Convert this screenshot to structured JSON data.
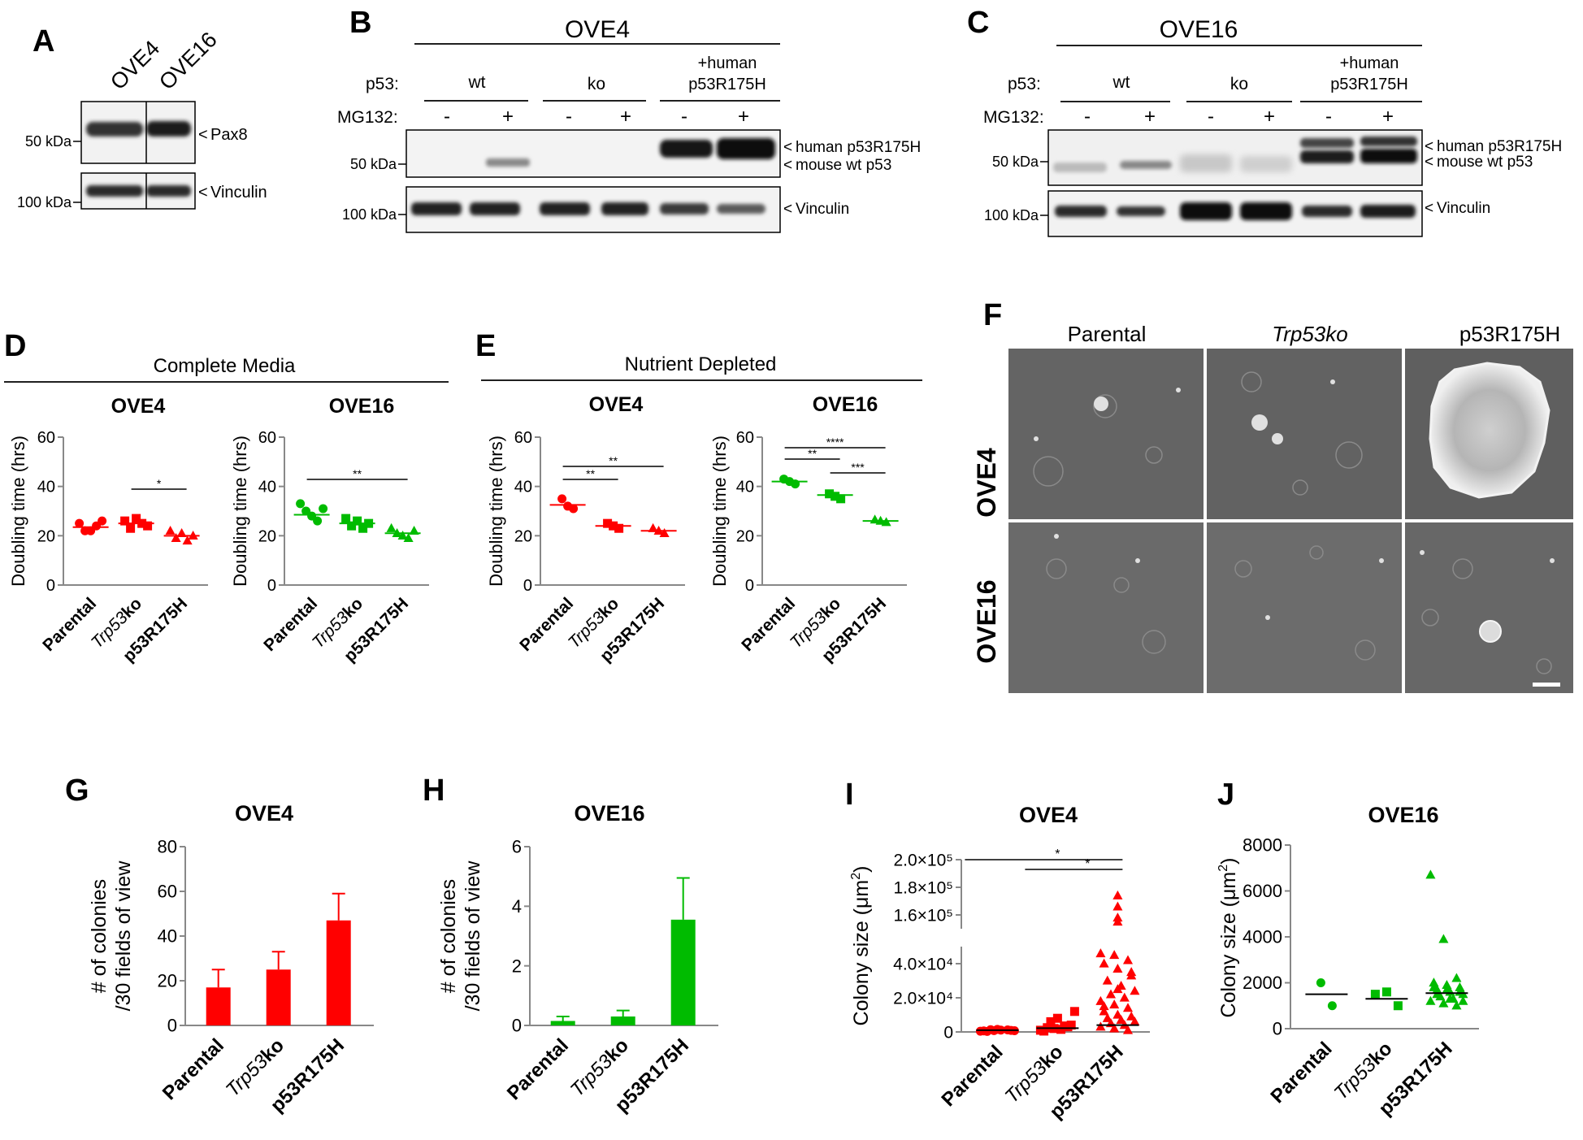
{
  "panels": {
    "A": {
      "letter": "A",
      "lanes": [
        "OVE4",
        "OVE16"
      ],
      "marker_top": "50 kDa",
      "marker_bottom": "100 kDa",
      "band_top": "Pax8",
      "band_bottom": "Vinculin"
    },
    "B": {
      "letter": "B",
      "cell_line": "OVE4",
      "p53_label": "p53:",
      "mg_label": "MG132:",
      "groups": [
        "wt",
        "ko"
      ],
      "group3_line1": "+human",
      "group3_line2": "p53R175H",
      "signs": [
        "-",
        "+",
        "-",
        "+",
        "-",
        "+"
      ],
      "marker_top": "50 kDa",
      "marker_bottom": "100 kDa",
      "band_human": "human p53R175H",
      "band_mouse": "mouse wt p53",
      "band_vinculin": "Vinculin"
    },
    "C": {
      "letter": "C",
      "cell_line": "OVE16",
      "p53_label": "p53:",
      "mg_label": "MG132:",
      "groups": [
        "wt",
        "ko"
      ],
      "group3_line1": "+human",
      "group3_line2": "p53R175H",
      "signs": [
        "-",
        "+",
        "-",
        "+",
        "-",
        "+"
      ],
      "marker_top": "50 kDa",
      "marker_bottom": "100 kDa",
      "band_human": "human p53R175H",
      "band_mouse": "mouse wt p53",
      "band_vinculin": "Vinculin"
    },
    "D": {
      "letter": "D",
      "condition": "Complete Media"
    },
    "E": {
      "letter": "E",
      "condition": "Nutrient Depleted"
    },
    "F": {
      "letter": "F",
      "columns": [
        "Parental",
        "Trp53ko",
        "p53R175H"
      ],
      "rows": [
        "OVE4",
        "OVE16"
      ]
    },
    "G": {
      "letter": "G"
    },
    "H": {
      "letter": "H"
    },
    "I": {
      "letter": "I"
    },
    "J": {
      "letter": "J"
    }
  },
  "chart_data": [
    {
      "id": "D-OVE4",
      "type": "scatter",
      "title": "OVE4",
      "ylabel": "Doubling time (hrs)",
      "ylim": [
        0,
        60
      ],
      "yticks": [
        0,
        20,
        40,
        60
      ],
      "color": "#ff0000",
      "categories": [
        "Parental",
        "Trp53ko",
        "p53R175H"
      ],
      "points": [
        [
          25,
          22,
          22,
          24,
          26
        ],
        [
          26,
          23,
          27,
          25,
          24
        ],
        [
          22,
          19,
          21,
          18,
          20
        ]
      ],
      "means": [
        23.5,
        25,
        20
      ],
      "significance": [
        {
          "from": 1,
          "to": 2,
          "label": "*"
        }
      ]
    },
    {
      "id": "D-OVE16",
      "type": "scatter",
      "title": "OVE16",
      "ylabel": "Doubling time (hrs)",
      "ylim": [
        0,
        60
      ],
      "yticks": [
        0,
        20,
        40,
        60
      ],
      "color": "#00bb00",
      "categories": [
        "Parental",
        "Trp53ko",
        "p53R175H"
      ],
      "points": [
        [
          33,
          30,
          28,
          26,
          31
        ],
        [
          27,
          24,
          26,
          23,
          25
        ],
        [
          23,
          21,
          20,
          19,
          22
        ]
      ],
      "means": [
        28.5,
        25,
        21
      ],
      "significance": [
        {
          "from": 0,
          "to": 2,
          "label": "**"
        }
      ]
    },
    {
      "id": "E-OVE4",
      "type": "scatter",
      "title": "OVE4",
      "ylabel": "Doubling time (hrs)",
      "ylim": [
        0,
        60
      ],
      "yticks": [
        0,
        20,
        40,
        60
      ],
      "color": "#ff0000",
      "categories": [
        "Parental",
        "Trp53ko",
        "p53R175H"
      ],
      "points": [
        [
          35,
          32,
          31
        ],
        [
          25,
          24,
          23
        ],
        [
          23,
          22,
          21
        ]
      ],
      "means": [
        32.5,
        24,
        22
      ],
      "significance": [
        {
          "from": 0,
          "to": 1,
          "label": "**"
        },
        {
          "from": 0,
          "to": 2,
          "label": "**"
        }
      ]
    },
    {
      "id": "E-OVE16",
      "type": "scatter",
      "title": "OVE16",
      "ylabel": "Doubling time (hrs)",
      "ylim": [
        0,
        60
      ],
      "yticks": [
        0,
        20,
        40,
        60
      ],
      "color": "#00bb00",
      "categories": [
        "Parental",
        "Trp53ko",
        "p53R175H"
      ],
      "points": [
        [
          43,
          42,
          41
        ],
        [
          37,
          36,
          35
        ],
        [
          26.5,
          26,
          25.5
        ]
      ],
      "means": [
        42,
        36.5,
        26
      ],
      "significance": [
        {
          "from": 0,
          "to": 1,
          "label": "**"
        },
        {
          "from": 1,
          "to": 2,
          "label": "***"
        },
        {
          "from": 0,
          "to": 2,
          "label": "****"
        }
      ]
    },
    {
      "id": "G",
      "type": "bar",
      "title": "OVE4",
      "ylabel_line1": "# of colonies",
      "ylabel_line2": "/30 fields of view",
      "ylim": [
        0,
        80
      ],
      "yticks": [
        0,
        20,
        40,
        60,
        80
      ],
      "color": "#ff0000",
      "categories": [
        "Parental",
        "Trp53ko",
        "p53R175H"
      ],
      "values": [
        17,
        25,
        47
      ],
      "errors": [
        8,
        8,
        12
      ]
    },
    {
      "id": "H",
      "type": "bar",
      "title": "OVE16",
      "ylabel_line1": "# of colonies",
      "ylabel_line2": "/30 fields of view",
      "ylim": [
        0,
        6
      ],
      "yticks": [
        0,
        2,
        4,
        6
      ],
      "color": "#00bb00",
      "categories": [
        "Parental",
        "Trp53ko",
        "p53R175H"
      ],
      "values": [
        0.15,
        0.3,
        3.55
      ],
      "errors": [
        0.15,
        0.2,
        1.4
      ]
    },
    {
      "id": "I",
      "type": "scatter",
      "title": "OVE4",
      "ylabel_main": "Colony size (μm",
      "ylabel_sup": "2",
      "ylabel_end": ")",
      "lower_ylim": [
        0,
        50000
      ],
      "lower_ticks": [
        0,
        20000,
        40000
      ],
      "lower_tick_labels": [
        "0",
        "2.0×10⁴",
        "4.0×10⁴"
      ],
      "upper_ylim": [
        150000,
        200000
      ],
      "upper_ticks": [
        160000,
        180000,
        200000
      ],
      "upper_tick_labels": [
        "1.6×10⁵",
        "1.8×10⁵",
        "2.0×10⁵"
      ],
      "color": "#ff0000",
      "categories": [
        "Parental",
        "Trp53ko",
        "p53R175H"
      ],
      "points": [
        [
          400,
          800,
          1200,
          600,
          1500,
          900,
          300,
          1100,
          700,
          1300
        ],
        [
          1000,
          2000,
          3000,
          500,
          8000,
          4000,
          2500,
          1500,
          12000,
          6000,
          3500
        ],
        [
          46000,
          45000,
          42000,
          40000,
          37000,
          33000,
          30000,
          27000,
          24000,
          22000,
          20000,
          18000,
          16000,
          14000,
          12000,
          10000,
          9000,
          8000,
          7000,
          6000,
          5000,
          4000,
          3000,
          2000,
          1000,
          15000,
          25000,
          35000
        ]
      ],
      "upper_points": [
        174000,
        166000,
        158000,
        155000
      ],
      "means": [
        1000,
        2200,
        4000
      ],
      "significance": [
        {
          "from": 0,
          "to": 2,
          "label": "*"
        },
        {
          "from": 1,
          "to": 2,
          "label": "*"
        }
      ]
    },
    {
      "id": "J",
      "type": "scatter",
      "title": "OVE16",
      "ylabel_main": "Colony size (μm",
      "ylabel_sup": "2",
      "ylabel_end": ")",
      "ylim": [
        0,
        8000
      ],
      "yticks": [
        0,
        2000,
        4000,
        6000,
        8000
      ],
      "color": "#00bb00",
      "categories": [
        "Parental",
        "Trp53ko",
        "p53R175H"
      ],
      "points": [
        [
          2000,
          1000
        ],
        [
          1500,
          1600,
          1000
        ],
        [
          6700,
          3900,
          2200,
          2000,
          1900,
          1800,
          1700,
          1600,
          1500,
          1400,
          1300,
          1200,
          1100,
          1000,
          1800,
          1700,
          1600,
          1500,
          1300,
          1200
        ]
      ],
      "means": [
        1500,
        1300,
        1550
      ]
    }
  ]
}
